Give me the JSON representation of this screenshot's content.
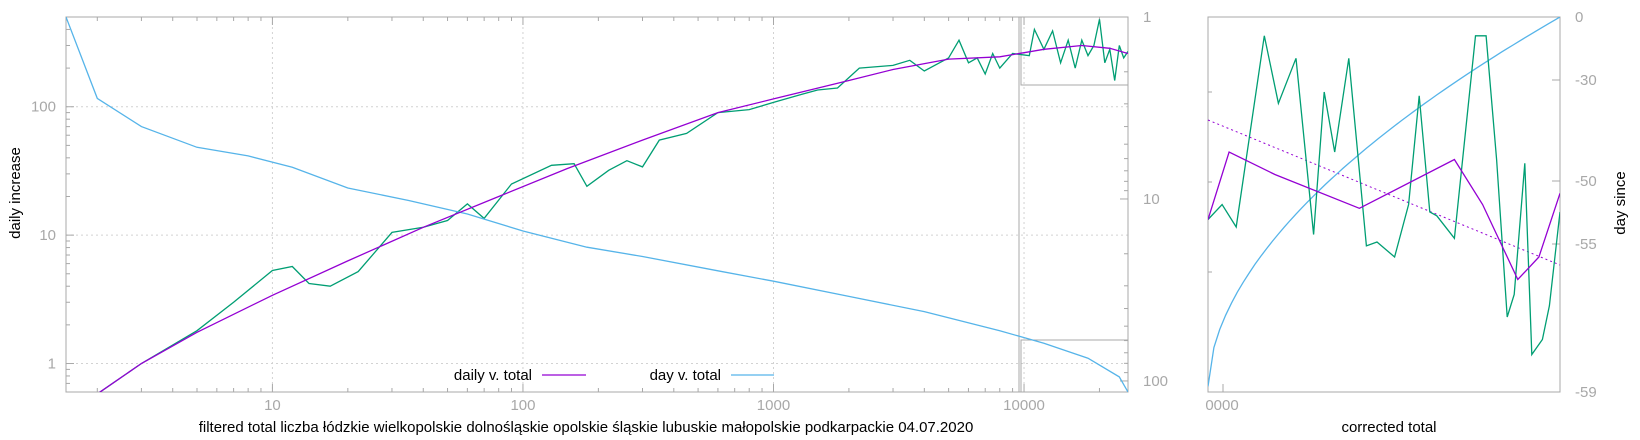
{
  "colors": {
    "fit": "#9400d3",
    "day": "#56b4e9",
    "filtered": "#009e73",
    "axis": "#a8a8a8",
    "grid": "#d2d2d2"
  },
  "chart_data": [
    {
      "type": "line",
      "xscale": "log",
      "yscale": "log",
      "y2scale": "log-inverted",
      "xlabel": "filtered total liczba łódzkie wielkopolskie dolnośląskie opolskie śląskie lubuskie małopolskie podkarpackie 04.07.2020",
      "ylabel": "daily increase",
      "xlim": [
        1.5,
        26000
      ],
      "ylim": [
        0.6,
        500
      ],
      "y2lim": [
        1,
        115
      ],
      "x_ticks": [
        "10",
        "100",
        "1000",
        "10000"
      ],
      "y_ticks": [
        "1",
        "10",
        "100"
      ],
      "y2_ticks": [
        "1",
        "10",
        "100"
      ],
      "grid": true,
      "legend_position": "bottom-center",
      "series": [
        {
          "name": "daily v. total",
          "axis": "y",
          "points": [
            [
              1.5,
              0.4
            ],
            [
              2,
              0.58
            ],
            [
              3,
              1.0
            ],
            [
              5,
              1.75
            ],
            [
              10,
              3.4
            ],
            [
              20,
              6.3
            ],
            [
              40,
              11.5
            ],
            [
              80,
              20
            ],
            [
              150,
              33
            ],
            [
              300,
              55
            ],
            [
              600,
              90
            ],
            [
              1000,
              115
            ],
            [
              2000,
              160
            ],
            [
              3000,
              195
            ],
            [
              5000,
              235
            ],
            [
              8000,
              245
            ],
            [
              12000,
              280
            ],
            [
              17000,
              300
            ],
            [
              22000,
              285
            ],
            [
              26000,
              260
            ]
          ]
        },
        {
          "name": "day v. total",
          "axis": "y2",
          "points": [
            [
              1.5,
              1
            ],
            [
              2,
              2.8
            ],
            [
              3,
              4
            ],
            [
              5,
              5.2
            ],
            [
              8,
              5.8
            ],
            [
              12,
              6.7
            ],
            [
              20,
              8.7
            ],
            [
              35,
              10.2
            ],
            [
              60,
              12.1
            ],
            [
              100,
              15
            ],
            [
              180,
              18.4
            ],
            [
              300,
              20.7
            ],
            [
              600,
              24.8
            ],
            [
              1000,
              28.3
            ],
            [
              2000,
              34.3
            ],
            [
              4000,
              41.6
            ],
            [
              8000,
              53
            ],
            [
              12000,
              62
            ],
            [
              18000,
              75
            ],
            [
              24000,
              95
            ],
            [
              26000,
              115
            ]
          ]
        },
        {
          "name": "",
          "axis": "y",
          "points": [
            [
              1.5,
              0.4
            ],
            [
              2,
              0.58
            ],
            [
              3,
              1.0
            ],
            [
              5,
              1.8
            ],
            [
              7,
              3.0
            ],
            [
              10,
              5.3
            ],
            [
              12,
              5.7
            ],
            [
              14,
              4.2
            ],
            [
              17,
              4.0
            ],
            [
              22,
              5.2
            ],
            [
              30,
              10.5
            ],
            [
              40,
              11.5
            ],
            [
              50,
              13
            ],
            [
              60,
              17.5
            ],
            [
              70,
              13.5
            ],
            [
              90,
              25
            ],
            [
              130,
              35
            ],
            [
              160,
              36
            ],
            [
              180,
              24
            ],
            [
              220,
              32
            ],
            [
              260,
              38
            ],
            [
              300,
              34
            ],
            [
              350,
              55
            ],
            [
              450,
              62
            ],
            [
              600,
              90
            ],
            [
              800,
              95
            ],
            [
              1000,
              108
            ],
            [
              1300,
              125
            ],
            [
              1500,
              135
            ],
            [
              1800,
              140
            ],
            [
              2200,
              200
            ],
            [
              3000,
              210
            ],
            [
              3500,
              230
            ],
            [
              4000,
              190
            ],
            [
              5000,
              240
            ],
            [
              5500,
              330
            ],
            [
              6000,
              220
            ],
            [
              6500,
              240
            ],
            [
              7000,
              180
            ],
            [
              7500,
              260
            ],
            [
              8000,
              200
            ],
            [
              9000,
              260
            ],
            [
              10500,
              250
            ],
            [
              11000,
              400
            ],
            [
              12000,
              280
            ],
            [
              13000,
              390
            ],
            [
              14000,
              220
            ],
            [
              15000,
              330
            ],
            [
              16000,
              200
            ],
            [
              17000,
              330
            ],
            [
              18000,
              250
            ],
            [
              19000,
              300
            ],
            [
              20000,
              480
            ],
            [
              21000,
              220
            ],
            [
              22000,
              280
            ],
            [
              23000,
              160
            ],
            [
              24000,
              300
            ],
            [
              25000,
              240
            ],
            [
              26000,
              270
            ]
          ]
        }
      ]
    },
    {
      "type": "line",
      "xlabel": "corrected total",
      "ylabel": "day since",
      "x_ticks": [
        "0000"
      ],
      "y2_ticks": [
        "0",
        "-30",
        "-50",
        "-55",
        "-59"
      ],
      "series": [
        {
          "name": "",
          "points": [
            [
              0,
              0.54
            ],
            [
              0.06,
              0.36
            ],
            [
              0.19,
              0.42
            ],
            [
              0.43,
              0.51
            ],
            [
              0.7,
              0.38
            ],
            [
              0.78,
              0.5
            ],
            [
              0.88,
              0.7
            ],
            [
              0.94,
              0.64
            ],
            [
              1.0,
              0.47
            ]
          ]
        },
        {
          "name": "",
          "points": [
            [
              0,
              0.54
            ],
            [
              0.1,
              0.3
            ],
            [
              0.2,
              0.16
            ],
            [
              0.3,
              0.16
            ],
            [
              0.4,
              0.36
            ],
            [
              0.5,
              0.36
            ],
            [
              0.6,
              0.44
            ],
            [
              0.7,
              0.18
            ],
            [
              0.78,
              0.43
            ],
            [
              0.88,
              0.58
            ],
            [
              0.96,
              0.42
            ],
            [
              1.0,
              0.24
            ]
          ]
        },
        {
          "name": "",
          "points": [
            [
              0,
              0.54
            ],
            [
              0.04,
              0.5
            ],
            [
              0.08,
              0.56
            ],
            [
              0.16,
              0.05
            ],
            [
              0.2,
              0.23
            ],
            [
              0.25,
              0.11
            ],
            [
              0.3,
              0.58
            ],
            [
              0.33,
              0.2
            ],
            [
              0.36,
              0.36
            ],
            [
              0.4,
              0.11
            ],
            [
              0.45,
              0.61
            ],
            [
              0.48,
              0.6
            ],
            [
              0.53,
              0.64
            ],
            [
              0.57,
              0.5
            ],
            [
              0.6,
              0.21
            ],
            [
              0.63,
              0.52
            ],
            [
              0.65,
              0.53
            ],
            [
              0.7,
              0.59
            ],
            [
              0.76,
              0.05
            ],
            [
              0.79,
              0.05
            ],
            [
              0.82,
              0.38
            ],
            [
              0.85,
              0.8
            ],
            [
              0.87,
              0.74
            ],
            [
              0.9,
              0.39
            ],
            [
              0.92,
              0.9
            ],
            [
              0.95,
              0.86
            ],
            [
              0.97,
              0.77
            ],
            [
              1.0,
              0.52
            ]
          ]
        }
      ]
    }
  ]
}
